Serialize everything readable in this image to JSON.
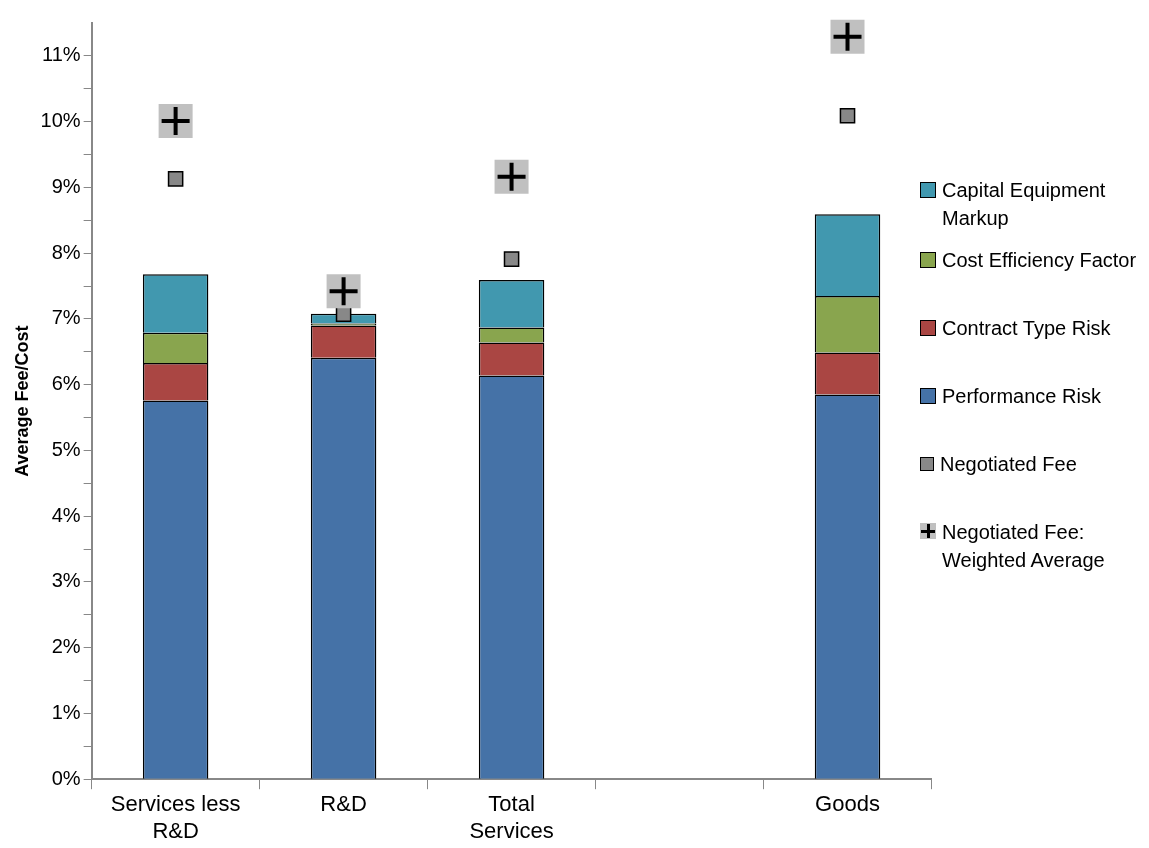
{
  "chart_data": {
    "type": "bar",
    "stacked": true,
    "ylabel": "Average Fee/Cost",
    "categories": [
      "Services less R&D",
      "R&D",
      "Total Services",
      null,
      "Goods"
    ],
    "series": [
      {
        "name": "Performance Risk",
        "color": "#4572a7",
        "values": [
          5.76,
          6.41,
          6.14,
          null,
          5.85
        ]
      },
      {
        "name": "Contract Type Risk",
        "color": "#aa4643",
        "values": [
          0.57,
          0.49,
          0.5,
          null,
          0.64
        ]
      },
      {
        "name": "Cost Efficiency Factor",
        "color": "#89a54e",
        "values": [
          0.46,
          0.03,
          0.23,
          null,
          0.86
        ]
      },
      {
        "name": "Capital Equipment Markup",
        "color": "#4198af",
        "values": [
          0.89,
          0.15,
          0.72,
          null,
          1.24
        ]
      },
      {
        "name": "Negotiated Fee",
        "type": "scatter",
        "marker": "square",
        "color": "#888888",
        "x": [
          "Services less R&D",
          "R&D",
          "Total Services",
          "Goods"
        ],
        "values": [
          9.13,
          7.07,
          7.91,
          10.09
        ]
      },
      {
        "name": "Negotiated Fee: Weighted Average",
        "type": "scatter",
        "marker": "cross",
        "color": "#000000",
        "x": [
          "Services less R&D",
          "R&D",
          "Total Services",
          "Goods"
        ],
        "values": [
          10.01,
          7.42,
          9.16,
          11.29
        ]
      }
    ],
    "ylim": [
      0,
      11.5
    ],
    "yticks": [
      {
        "value": 0,
        "label": "0%"
      },
      {
        "value": 0.5,
        "label": null
      },
      {
        "value": 1,
        "label": "1%"
      },
      {
        "value": 1.5,
        "label": null
      },
      {
        "value": 2,
        "label": "2%"
      },
      {
        "value": 2.5,
        "label": null
      },
      {
        "value": 3,
        "label": "3%"
      },
      {
        "value": 3.5,
        "label": null
      },
      {
        "value": 4,
        "label": "4%"
      },
      {
        "value": 4.5,
        "label": null
      },
      {
        "value": 5,
        "label": "5%"
      },
      {
        "value": 5.5,
        "label": null
      },
      {
        "value": 6,
        "label": "6%"
      },
      {
        "value": 6.5,
        "label": null
      },
      {
        "value": 7,
        "label": "7%"
      },
      {
        "value": 7.5,
        "label": null
      },
      {
        "value": 8,
        "label": "8%"
      },
      {
        "value": 8.5,
        "label": null
      },
      {
        "value": 9,
        "label": "9%"
      },
      {
        "value": 9.5,
        "label": null
      },
      {
        "value": 10,
        "label": "10%"
      },
      {
        "value": 10.5,
        "label": null
      },
      {
        "value": 11,
        "label": "11%"
      }
    ],
    "grid": false,
    "legend": "right"
  }
}
